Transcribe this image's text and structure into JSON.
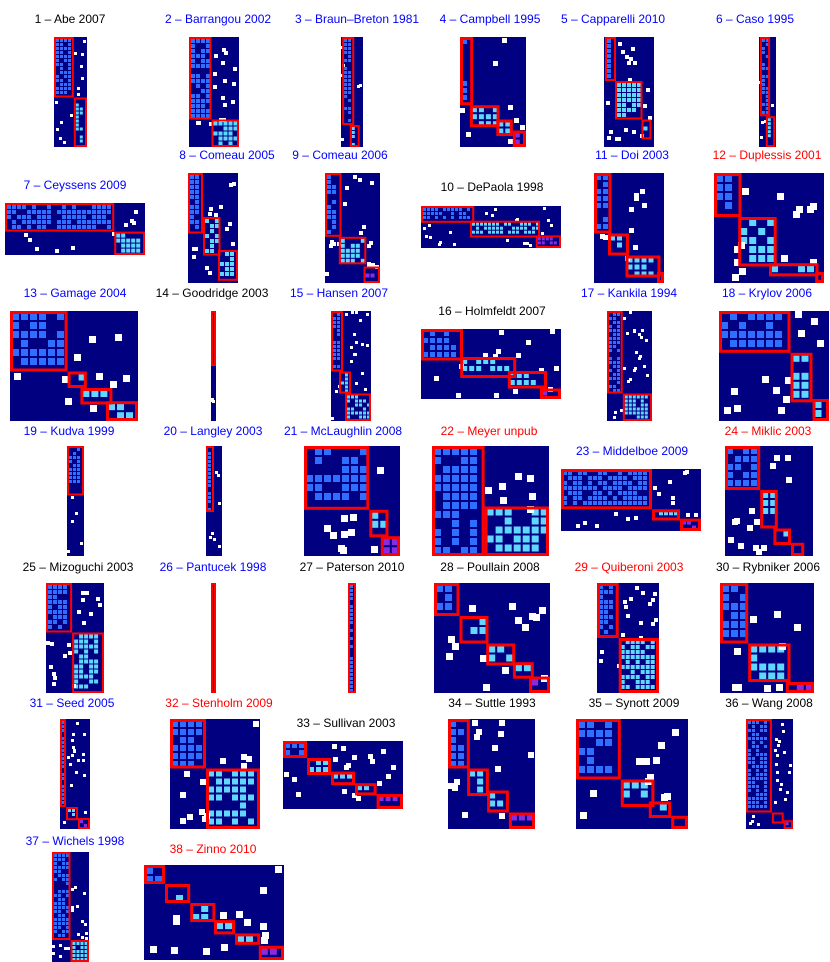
{
  "colors": {
    "matrix_background": "#000080",
    "cell_white": "#ffffff",
    "cell_light": "#5fd7ff",
    "cell_mid": "#2f6fff",
    "module_border": "#ff0000",
    "title_black": "#000000",
    "title_blue": "#0000ff",
    "title_red": "#ff0000"
  },
  "chart_data": {
    "type": "heatmap",
    "description": "38 phage–bacteria infection matrices with modules outlined",
    "panels": [
      {
        "label": "1 – Abe 2007",
        "title_color": "black",
        "modules": [
          [
            0,
            0.0,
            0.0,
            0.6,
            0.55
          ],
          [
            1,
            0.6,
            0.55,
            0.4,
            0.45
          ]
        ]
      },
      {
        "label": "2 – Barrangou 2002",
        "title_color": "blue",
        "modules": [
          [
            0,
            0.0,
            0.0,
            0.45,
            0.75
          ],
          [
            1,
            0.45,
            0.75,
            0.55,
            0.25
          ]
        ]
      },
      {
        "label": "3 – Braun–Breton 1981",
        "title_color": "blue",
        "modules": [
          [
            0,
            0.05,
            0.0,
            0.55,
            0.8
          ],
          [
            1,
            0.4,
            0.8,
            0.45,
            0.2
          ]
        ]
      },
      {
        "label": "4 – Campbell 1995",
        "title_color": "blue",
        "modules": [
          [
            0,
            0.0,
            0.0,
            0.2,
            0.62
          ],
          [
            1,
            0.15,
            0.62,
            0.45,
            0.2
          ],
          [
            1,
            0.55,
            0.75,
            0.25,
            0.15
          ],
          [
            2,
            0.8,
            0.85,
            0.2,
            0.15
          ]
        ]
      },
      {
        "label": "5 – Capparelli 2010",
        "title_color": "blue",
        "modules": [
          [
            0,
            0.02,
            0.0,
            0.22,
            0.4
          ],
          [
            1,
            0.22,
            0.4,
            0.55,
            0.35
          ],
          [
            1,
            0.75,
            0.75,
            0.2,
            0.18
          ]
        ]
      },
      {
        "label": "6 – Caso 1995",
        "title_color": "blue",
        "modules": [
          [
            0,
            0.05,
            0.0,
            0.6,
            0.72
          ],
          [
            1,
            0.4,
            0.72,
            0.55,
            0.28
          ]
        ]
      },
      {
        "label": "7 – Ceyssens 2009",
        "title_color": "blue",
        "modules": [
          [
            0,
            0.0,
            0.0,
            0.78,
            0.55
          ],
          [
            1,
            0.78,
            0.55,
            0.22,
            0.45
          ]
        ]
      },
      {
        "label": "8 – Comeau 2005",
        "title_color": "blue",
        "modules": [
          [
            0,
            0.0,
            0.0,
            0.3,
            0.55
          ],
          [
            1,
            0.3,
            0.4,
            0.35,
            0.35
          ],
          [
            1,
            0.6,
            0.7,
            0.4,
            0.28
          ]
        ]
      },
      {
        "label": "9 – Comeau 2006",
        "title_color": "blue",
        "modules": [
          [
            0,
            0.0,
            0.0,
            0.3,
            0.58
          ],
          [
            1,
            0.25,
            0.58,
            0.5,
            0.25
          ],
          [
            2,
            0.7,
            0.85,
            0.3,
            0.15
          ]
        ]
      },
      {
        "label": "10 – DePaola 1998",
        "title_color": "black",
        "modules": [
          [
            0,
            0.0,
            0.0,
            0.38,
            0.4
          ],
          [
            1,
            0.35,
            0.35,
            0.5,
            0.4
          ],
          [
            2,
            0.82,
            0.7,
            0.18,
            0.3
          ]
        ]
      },
      {
        "label": "11 – Doi 2003",
        "title_color": "blue",
        "modules": [
          [
            0,
            0.0,
            0.0,
            0.25,
            0.55
          ],
          [
            1,
            0.2,
            0.55,
            0.3,
            0.2
          ],
          [
            1,
            0.45,
            0.75,
            0.5,
            0.2
          ],
          [
            2,
            0.9,
            0.9,
            0.1,
            0.1
          ]
        ]
      },
      {
        "label": "12 – Duplessis 2001",
        "title_color": "red",
        "modules": [
          [
            0,
            0.0,
            0.0,
            0.25,
            0.4
          ],
          [
            1,
            0.22,
            0.4,
            0.35,
            0.45
          ],
          [
            1,
            0.5,
            0.82,
            0.45,
            0.12
          ],
          [
            2,
            0.92,
            0.9,
            0.08,
            0.1
          ]
        ]
      },
      {
        "label": "13 – Gamage 2004",
        "title_color": "blue",
        "modules": [
          [
            0,
            0.0,
            0.0,
            0.45,
            0.55
          ],
          [
            1,
            0.45,
            0.55,
            0.15,
            0.15
          ],
          [
            1,
            0.55,
            0.7,
            0.25,
            0.15
          ],
          [
            1,
            0.75,
            0.82,
            0.25,
            0.18
          ]
        ]
      },
      {
        "label": "14 – Goodridge 2003",
        "title_color": "black",
        "modules": [
          [
            0,
            0.0,
            0.0,
            1.0,
            0.5
          ]
        ]
      },
      {
        "label": "15 – Hansen 2007",
        "title_color": "blue",
        "modules": [
          [
            0,
            0.0,
            0.0,
            0.3,
            0.55
          ],
          [
            1,
            0.2,
            0.55,
            0.3,
            0.2
          ],
          [
            1,
            0.35,
            0.75,
            0.65,
            0.25
          ]
        ]
      },
      {
        "label": "16 – Holmfeldt 2007",
        "title_color": "black",
        "modules": [
          [
            0,
            0.0,
            0.0,
            0.3,
            0.45
          ],
          [
            1,
            0.28,
            0.4,
            0.4,
            0.3
          ],
          [
            1,
            0.62,
            0.6,
            0.28,
            0.25
          ],
          [
            2,
            0.85,
            0.85,
            0.15,
            0.15
          ]
        ]
      },
      {
        "label": "17 – Kankila 1994",
        "title_color": "blue",
        "modules": [
          [
            0,
            0.0,
            0.0,
            0.35,
            0.75
          ],
          [
            1,
            0.35,
            0.75,
            0.65,
            0.25
          ]
        ]
      },
      {
        "label": "18 – Krylov 2006",
        "title_color": "blue",
        "modules": [
          [
            0,
            0.0,
            0.0,
            0.65,
            0.38
          ],
          [
            1,
            0.65,
            0.38,
            0.2,
            0.45
          ],
          [
            1,
            0.85,
            0.8,
            0.15,
            0.2
          ]
        ]
      },
      {
        "label": "19 – Kudva 1999",
        "title_color": "blue",
        "modules": [
          [
            0,
            0.0,
            0.0,
            1.0,
            0.45
          ]
        ]
      },
      {
        "label": "20 – Langley 2003",
        "title_color": "blue",
        "modules": [
          [
            0,
            0.0,
            0.0,
            0.5,
            0.6
          ]
        ]
      },
      {
        "label": "21 – McLaughlin 2008",
        "title_color": "blue",
        "modules": [
          [
            0,
            0.0,
            0.0,
            0.68,
            0.58
          ],
          [
            1,
            0.68,
            0.58,
            0.2,
            0.25
          ],
          [
            2,
            0.8,
            0.82,
            0.2,
            0.18
          ]
        ]
      },
      {
        "label": "22 – Meyer unpub",
        "title_color": "red",
        "modules": [
          [
            0,
            0.0,
            0.0,
            0.45,
            1.0
          ],
          [
            1,
            0.45,
            0.55,
            0.55,
            0.45
          ]
        ]
      },
      {
        "label": "23 – Middelboe 2009",
        "title_color": "blue",
        "modules": [
          [
            0,
            0.0,
            0.0,
            0.65,
            0.65
          ],
          [
            1,
            0.65,
            0.65,
            0.2,
            0.18
          ],
          [
            2,
            0.85,
            0.8,
            0.15,
            0.2
          ]
        ]
      },
      {
        "label": "24 – Miklic 2003",
        "title_color": "red",
        "modules": [
          [
            0,
            0.0,
            0.0,
            0.4,
            0.4
          ],
          [
            1,
            0.4,
            0.4,
            0.2,
            0.35
          ],
          [
            1,
            0.55,
            0.75,
            0.2,
            0.15
          ],
          [
            2,
            0.75,
            0.88,
            0.15,
            0.12
          ]
        ]
      },
      {
        "label": "25 – Mizoguchi 2003",
        "title_color": "black",
        "modules": [
          [
            0,
            0.0,
            0.0,
            0.45,
            0.45
          ],
          [
            1,
            0.45,
            0.45,
            0.55,
            0.55
          ]
        ]
      },
      {
        "label": "26 – Pantucek 1998",
        "title_color": "blue",
        "modules": [
          [
            0,
            0.0,
            0.0,
            1.0,
            1.0
          ]
        ]
      },
      {
        "label": "27 – Paterson 2010",
        "title_color": "black",
        "modules": [
          [
            0,
            0.0,
            0.0,
            1.0,
            1.0
          ]
        ]
      },
      {
        "label": "28 – Poullain 2008",
        "title_color": "black",
        "modules": [
          [
            0,
            0.0,
            0.0,
            0.22,
            0.3
          ],
          [
            1,
            0.22,
            0.3,
            0.25,
            0.25
          ],
          [
            1,
            0.45,
            0.55,
            0.25,
            0.2
          ],
          [
            1,
            0.68,
            0.72,
            0.18,
            0.15
          ],
          [
            2,
            0.82,
            0.85,
            0.18,
            0.15
          ]
        ]
      },
      {
        "label": "29 – Quiberoni 2003",
        "title_color": "red",
        "modules": [
          [
            0,
            0.0,
            0.0,
            0.35,
            0.5
          ],
          [
            1,
            0.35,
            0.5,
            0.65,
            0.5
          ]
        ]
      },
      {
        "label": "30 – Rybniker 2006",
        "title_color": "black",
        "modules": [
          [
            0,
            0.0,
            0.0,
            0.3,
            0.55
          ],
          [
            1,
            0.3,
            0.55,
            0.45,
            0.35
          ],
          [
            2,
            0.7,
            0.9,
            0.3,
            0.1
          ]
        ]
      },
      {
        "label": "31 – Seed 2005",
        "title_color": "blue",
        "modules": [
          [
            0,
            0.0,
            0.0,
            0.2,
            0.8
          ],
          [
            1,
            0.2,
            0.8,
            0.4,
            0.12
          ],
          [
            2,
            0.6,
            0.9,
            0.4,
            0.1
          ]
        ]
      },
      {
        "label": "32 – Stenholm 2009",
        "title_color": "red",
        "modules": [
          [
            0,
            0.0,
            0.0,
            0.4,
            0.45
          ],
          [
            1,
            0.4,
            0.45,
            0.6,
            0.55
          ]
        ]
      },
      {
        "label": "33 – Sullivan 2003",
        "title_color": "black",
        "modules": [
          [
            0,
            0.0,
            0.0,
            0.2,
            0.25
          ],
          [
            1,
            0.2,
            0.25,
            0.2,
            0.25
          ],
          [
            1,
            0.4,
            0.45,
            0.2,
            0.2
          ],
          [
            1,
            0.6,
            0.62,
            0.18,
            0.18
          ],
          [
            2,
            0.78,
            0.78,
            0.22,
            0.22
          ]
        ]
      },
      {
        "label": "34 – Suttle 1993",
        "title_color": "black",
        "modules": [
          [
            0,
            0.0,
            0.0,
            0.25,
            0.45
          ],
          [
            1,
            0.22,
            0.45,
            0.25,
            0.25
          ],
          [
            1,
            0.45,
            0.65,
            0.25,
            0.2
          ],
          [
            2,
            0.7,
            0.85,
            0.3,
            0.15
          ]
        ]
      },
      {
        "label": "35 – Synott 2009",
        "title_color": "black",
        "modules": [
          [
            0,
            0.0,
            0.0,
            0.4,
            0.55
          ],
          [
            1,
            0.4,
            0.55,
            0.3,
            0.25
          ],
          [
            1,
            0.65,
            0.75,
            0.2,
            0.15
          ],
          [
            2,
            0.85,
            0.88,
            0.15,
            0.12
          ]
        ]
      },
      {
        "label": "36 – Wang 2008",
        "title_color": "black",
        "modules": [
          [
            0,
            0.0,
            0.0,
            0.55,
            0.85
          ],
          [
            1,
            0.55,
            0.85,
            0.25,
            0.1
          ],
          [
            2,
            0.8,
            0.92,
            0.2,
            0.08
          ]
        ]
      },
      {
        "label": "37 – Wichels 1998",
        "title_color": "blue",
        "modules": [
          [
            0,
            0.0,
            0.0,
            0.5,
            0.8
          ],
          [
            1,
            0.5,
            0.8,
            0.5,
            0.2
          ]
        ]
      },
      {
        "label": "38 – Zinno 2010",
        "title_color": "red",
        "modules": [
          [
            0,
            0.0,
            0.0,
            0.15,
            0.2
          ],
          [
            1,
            0.15,
            0.2,
            0.18,
            0.2
          ],
          [
            1,
            0.33,
            0.4,
            0.18,
            0.2
          ],
          [
            1,
            0.5,
            0.58,
            0.15,
            0.15
          ],
          [
            1,
            0.65,
            0.72,
            0.18,
            0.12
          ],
          [
            2,
            0.82,
            0.85,
            0.18,
            0.15
          ]
        ]
      }
    ]
  }
}
